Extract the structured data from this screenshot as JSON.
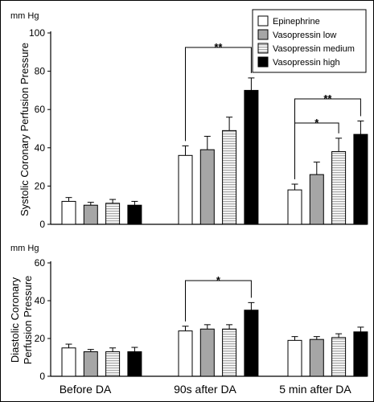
{
  "chart_data": [
    {
      "type": "bar",
      "panel": "top",
      "unit": "mm Hg",
      "ylabel": "Systolic Coronary Perfusion Pressure",
      "ylim": [
        0,
        100
      ],
      "yticks": [
        0,
        20,
        40,
        60,
        80,
        100
      ],
      "categories": [
        "Before DA",
        "90s after DA",
        "5 min after DA"
      ],
      "series": [
        {
          "name": "Epinephrine",
          "values": [
            12,
            36,
            18
          ],
          "errors": [
            2,
            5,
            3
          ]
        },
        {
          "name": "Vasopressin low",
          "values": [
            10,
            39,
            26
          ],
          "errors": [
            1.5,
            7,
            6.5
          ]
        },
        {
          "name": "Vasopressin medium",
          "values": [
            11,
            49,
            38
          ],
          "errors": [
            2,
            7,
            7
          ]
        },
        {
          "name": "Vasopressin high",
          "values": [
            10,
            70,
            47
          ],
          "errors": [
            2,
            6.5,
            7
          ]
        }
      ],
      "significance": [
        {
          "category": 1,
          "from_series": 0,
          "to_series": 3,
          "label": "**"
        },
        {
          "category": 2,
          "from_series": 0,
          "to_series": 3,
          "label": "**"
        },
        {
          "category": 2,
          "from_series": 0,
          "to_series": 2,
          "label": "*"
        }
      ],
      "legend": "top-right"
    },
    {
      "type": "bar",
      "panel": "bottom",
      "unit": "mm Hg",
      "ylabel": [
        "Diastolic Coronary",
        "Perfusion Pressure"
      ],
      "ylim": [
        0,
        60
      ],
      "yticks": [
        0,
        20,
        40,
        60
      ],
      "categories": [
        "Before DA",
        "90s after DA",
        "5 min after DA"
      ],
      "series": [
        {
          "name": "Epinephrine",
          "values": [
            15,
            24,
            19
          ],
          "errors": [
            2,
            2.5,
            2
          ]
        },
        {
          "name": "Vasopressin low",
          "values": [
            13,
            25,
            19.5
          ],
          "errors": [
            1.2,
            2.3,
            1.5
          ]
        },
        {
          "name": "Vasopressin medium",
          "values": [
            13,
            25,
            20.5
          ],
          "errors": [
            2,
            2.3,
            2
          ]
        },
        {
          "name": "Vasopressin high",
          "values": [
            13,
            35,
            23.5
          ],
          "errors": [
            2.3,
            4,
            2.5
          ]
        }
      ],
      "significance": [
        {
          "category": 1,
          "from_series": 0,
          "to_series": 3,
          "label": "*"
        }
      ]
    }
  ],
  "legend_items": [
    {
      "name": "Epinephrine",
      "style": "white"
    },
    {
      "name": "Vasopressin low",
      "style": "gray"
    },
    {
      "name": "Vasopressin medium",
      "style": "striped"
    },
    {
      "name": "Vasopressin high",
      "style": "black"
    }
  ],
  "colors": {
    "white": "#ffffff",
    "gray": "#a6a6a6",
    "black": "#000000",
    "stripe": "#8c8c8c"
  }
}
